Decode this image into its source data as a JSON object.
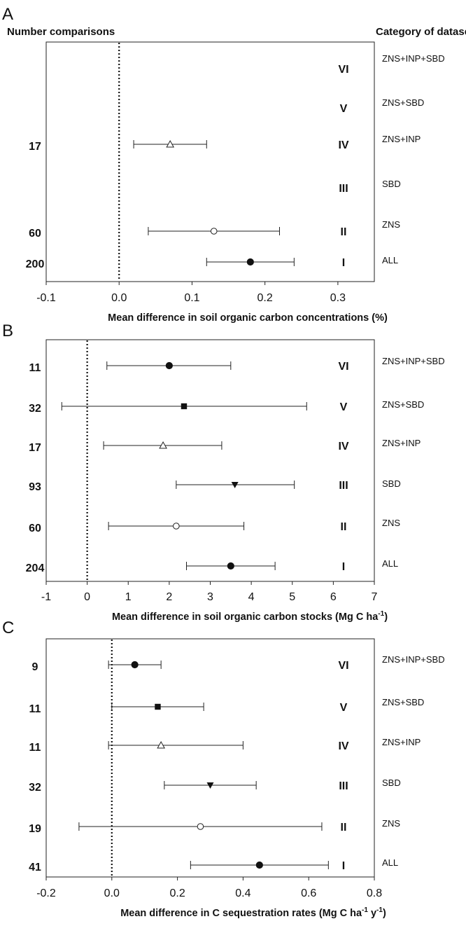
{
  "figure": {
    "header_left": "Number comparisons",
    "header_right": "Category of datasets"
  },
  "chart_data": [
    {
      "panel": "A",
      "type": "scatter",
      "subtype": "forest-plot",
      "xlabel": "Mean difference in soil organic carbon concentrations (%)",
      "xlim": [
        -0.1,
        0.35
      ],
      "xticks": [
        "-0.1",
        "0.0",
        "0.1",
        "0.2",
        "0.3"
      ],
      "reference_line_x": 0,
      "rows": [
        {
          "roman": "VI",
          "category": "ZNS+INP+SBD",
          "n": "",
          "mean": null,
          "lo": null,
          "hi": null,
          "marker": null
        },
        {
          "roman": "V",
          "category": "ZNS+SBD",
          "n": "",
          "mean": null,
          "lo": null,
          "hi": null,
          "marker": null
        },
        {
          "roman": "IV",
          "category": "ZNS+INP",
          "n": "17",
          "mean": 0.07,
          "lo": 0.02,
          "hi": 0.12,
          "marker": "triangle-open"
        },
        {
          "roman": "III",
          "category": "SBD",
          "n": "",
          "mean": null,
          "lo": null,
          "hi": null,
          "marker": null
        },
        {
          "roman": "II",
          "category": "ZNS",
          "n": "60",
          "mean": 0.13,
          "lo": 0.04,
          "hi": 0.22,
          "marker": "circle-open"
        },
        {
          "roman": "I",
          "category": "ALL",
          "n": "200",
          "mean": 0.18,
          "lo": 0.12,
          "hi": 0.24,
          "marker": "circle-filled"
        }
      ]
    },
    {
      "panel": "B",
      "type": "scatter",
      "subtype": "forest-plot",
      "xlabel": "Mean difference in soil organic carbon stocks (Mg C ha",
      "xlabel_sup": "-1",
      "xlabel_end": ")",
      "xlim": [
        -1,
        7
      ],
      "xticks": [
        "-1",
        "0",
        "1",
        "2",
        "3",
        "4",
        "5",
        "6",
        "7"
      ],
      "reference_line_x": 0,
      "rows": [
        {
          "roman": "VI",
          "category": "ZNS+INP+SBD",
          "n": "11",
          "mean": 2.0,
          "lo": 0.48,
          "hi": 3.5,
          "marker": "circle-filled"
        },
        {
          "roman": "V",
          "category": "ZNS+SBD",
          "n": "32",
          "mean": 2.36,
          "lo": -0.62,
          "hi": 5.35,
          "marker": "square-filled"
        },
        {
          "roman": "IV",
          "category": "ZNS+INP",
          "n": "17",
          "mean": 1.85,
          "lo": 0.4,
          "hi": 3.28,
          "marker": "triangle-open"
        },
        {
          "roman": "III",
          "category": "SBD",
          "n": "93",
          "mean": 3.6,
          "lo": 2.17,
          "hi": 5.05,
          "marker": "triangle-down-filled"
        },
        {
          "roman": "II",
          "category": "ZNS",
          "n": "60",
          "mean": 2.17,
          "lo": 0.52,
          "hi": 3.82,
          "marker": "circle-open"
        },
        {
          "roman": "I",
          "category": "ALL",
          "n": "204",
          "mean": 3.5,
          "lo": 2.42,
          "hi": 4.58,
          "marker": "circle-filled"
        }
      ]
    },
    {
      "panel": "C",
      "type": "scatter",
      "subtype": "forest-plot",
      "xlabel": "Mean difference in C sequestration rates (Mg C ha",
      "xlabel_sup": "-1",
      "xlabel_mid": " y",
      "xlabel_sup2": "-1",
      "xlabel_end": ")",
      "xlim": [
        -0.2,
        0.8
      ],
      "xticks": [
        "-0.2",
        "0.0",
        "0.2",
        "0.4",
        "0.6",
        "0.8"
      ],
      "reference_line_x": 0,
      "rows": [
        {
          "roman": "VI",
          "category": "ZNS+INP+SBD",
          "n": "9",
          "mean": 0.07,
          "lo": -0.01,
          "hi": 0.15,
          "marker": "circle-filled"
        },
        {
          "roman": "V",
          "category": "ZNS+SBD",
          "n": "11",
          "mean": 0.14,
          "lo": 0.0,
          "hi": 0.28,
          "marker": "square-filled"
        },
        {
          "roman": "IV",
          "category": "ZNS+INP",
          "n": "11",
          "mean": 0.15,
          "lo": -0.01,
          "hi": 0.4,
          "marker": "triangle-open"
        },
        {
          "roman": "III",
          "category": "SBD",
          "n": "32",
          "mean": 0.3,
          "lo": 0.16,
          "hi": 0.44,
          "marker": "triangle-down-filled"
        },
        {
          "roman": "II",
          "category": "ZNS",
          "n": "19",
          "mean": 0.27,
          "lo": -0.1,
          "hi": 0.64,
          "marker": "circle-open"
        },
        {
          "roman": "I",
          "category": "ALL",
          "n": "41",
          "mean": 0.45,
          "lo": 0.24,
          "hi": 0.66,
          "marker": "circle-filled"
        }
      ]
    }
  ]
}
